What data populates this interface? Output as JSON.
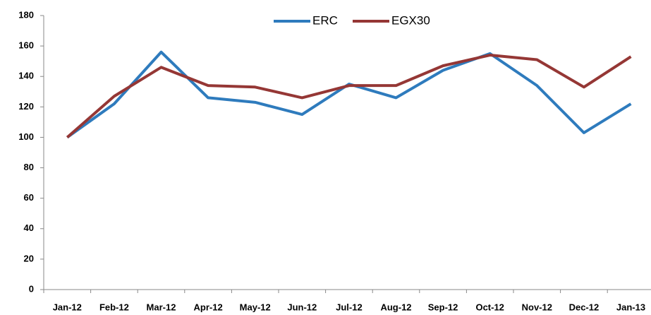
{
  "chart_data": {
    "type": "line",
    "categories": [
      "Jan-12",
      "Feb-12",
      "Mar-12",
      "Apr-12",
      "May-12",
      "Jun-12",
      "Jul-12",
      "Aug-12",
      "Sep-12",
      "Oct-12",
      "Nov-12",
      "Dec-12",
      "Jan-13"
    ],
    "series": [
      {
        "name": "ERC",
        "color": "#2e7bbd",
        "values": [
          100,
          122,
          156,
          126,
          123,
          115,
          135,
          126,
          144,
          155,
          134,
          103,
          122
        ]
      },
      {
        "name": "EGX30",
        "color": "#953735",
        "values": [
          100,
          127,
          146,
          134,
          133,
          126,
          134,
          134,
          147,
          154,
          151,
          133,
          153
        ]
      }
    ],
    "ylim": [
      0,
      180
    ],
    "yticks": [
      0,
      20,
      40,
      60,
      80,
      100,
      120,
      140,
      160,
      180
    ],
    "grid": false,
    "legend": "top"
  }
}
